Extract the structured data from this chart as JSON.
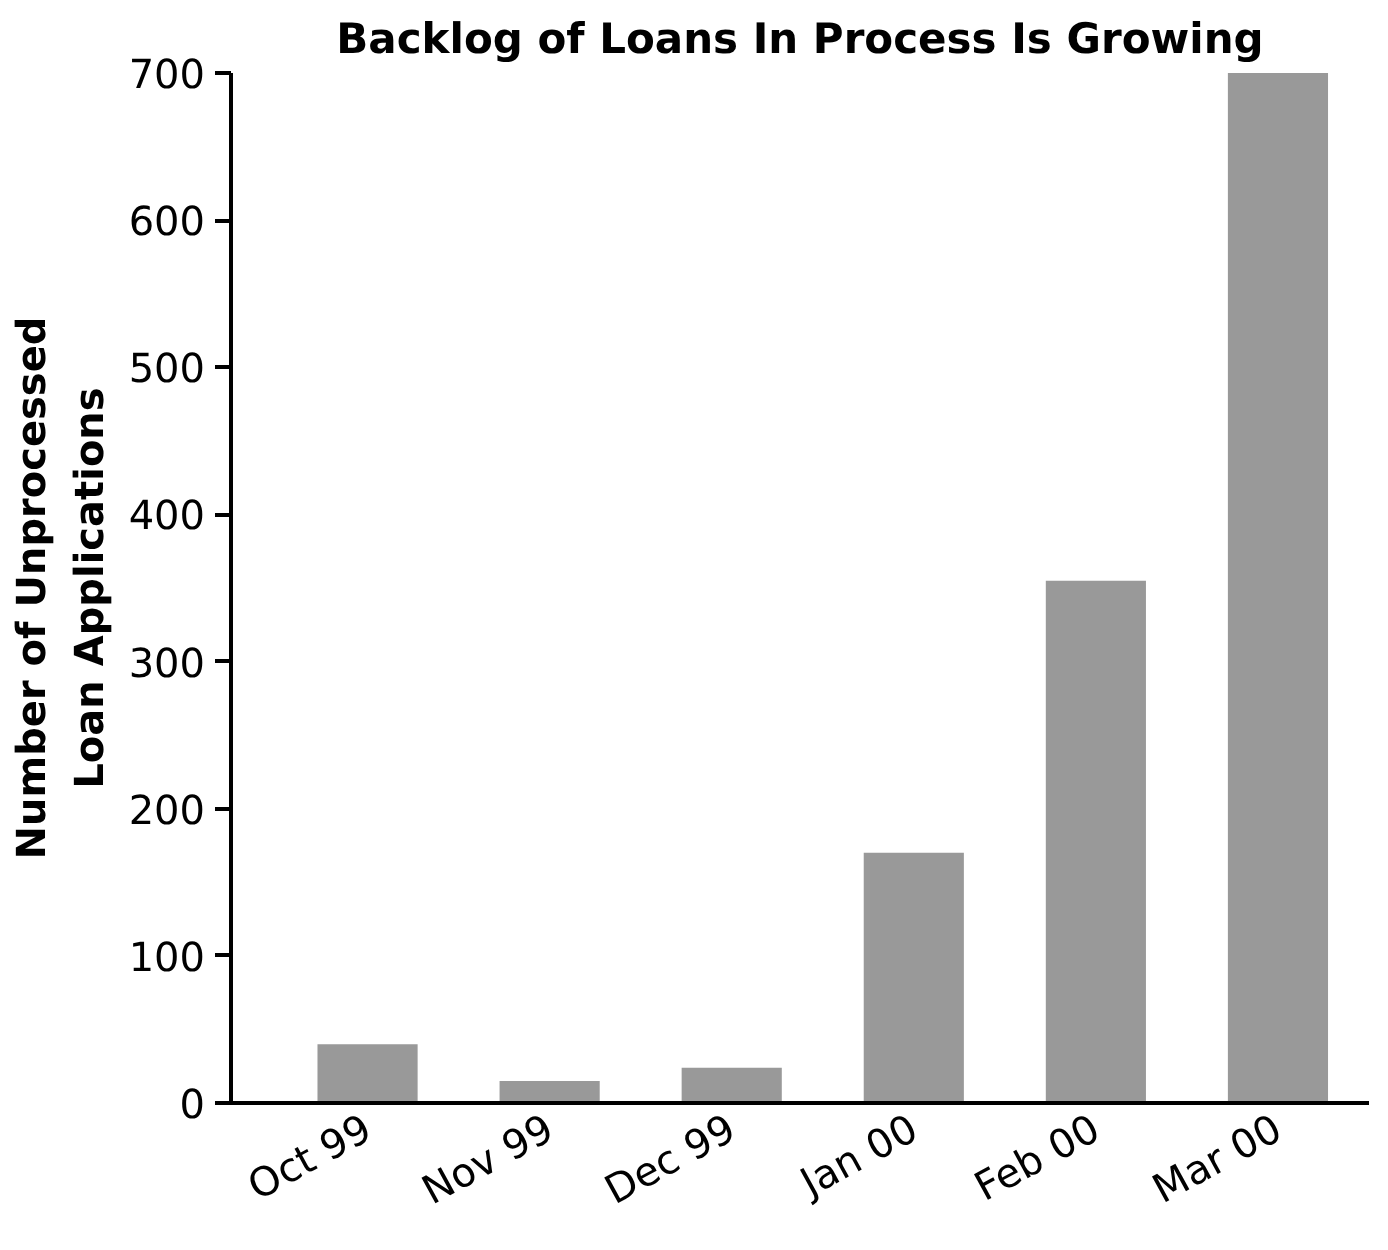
{
  "chart_data": {
    "type": "bar",
    "title": "Backlog of Loans In Process Is Growing",
    "ylabel": "Number of Unprocessed Loan Applications",
    "categories": [
      "Oct 99",
      "Nov 99",
      "Dec 99",
      "Jan 00",
      "Feb 00",
      "Mar 00"
    ],
    "values": [
      40,
      15,
      24,
      170,
      355,
      700
    ],
    "color": "#999999",
    "ylim": [
      0,
      700
    ],
    "yticks": [
      0,
      100,
      200,
      300,
      400,
      500,
      600,
      700
    ],
    "grid": false
  }
}
